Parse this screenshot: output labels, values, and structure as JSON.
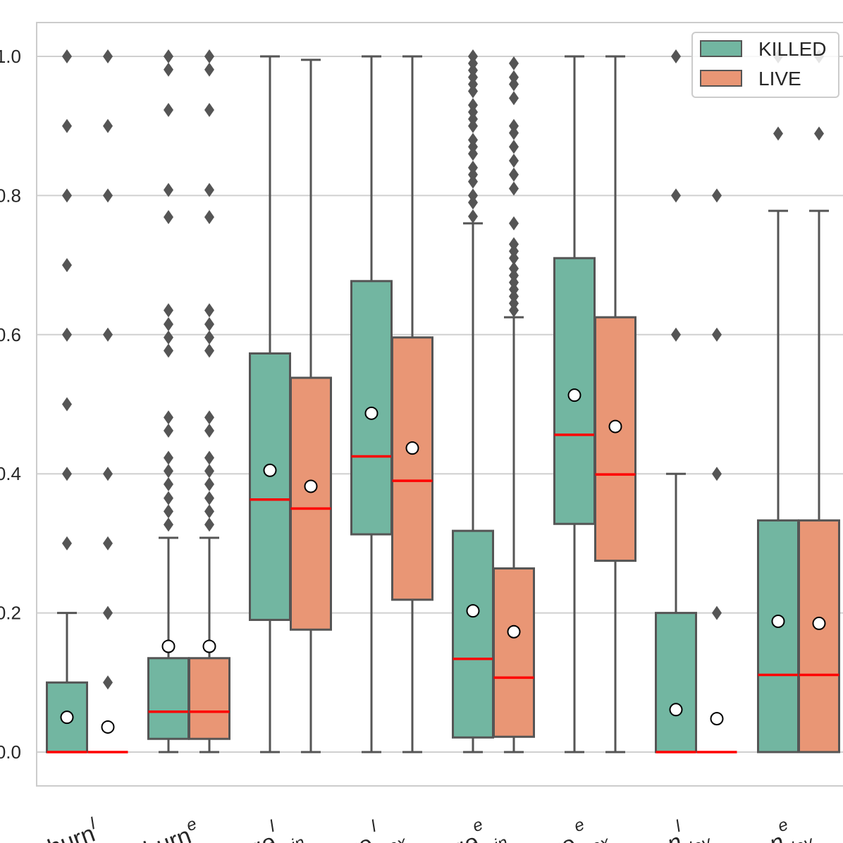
{
  "chart_data": {
    "type": "box",
    "ylim": [
      -0.05,
      1.05
    ],
    "y_ticks": [
      "0.0",
      "0.2",
      "0.4",
      "0.6",
      "0.8",
      "1.0"
    ],
    "grid": "horizontal",
    "legend_position": "top-right",
    "colors": {
      "KILLED": "#72b6a1",
      "LIVE": "#e99675",
      "median": "#ff0000",
      "edge": "#555555",
      "mean_marker": "#ffffff"
    },
    "categories": [
      {
        "base": "churn",
        "sup": "l",
        "sub": ""
      },
      {
        "base": "churn",
        "sup": "e",
        "sub": ""
      },
      {
        "base": "age",
        "sup": "l",
        "sub": "min"
      },
      {
        "base": "age",
        "sup": "l",
        "sub": "max"
      },
      {
        "base": "age",
        "sup": "e",
        "sub": "min"
      },
      {
        "base": "age",
        "sup": "e",
        "sub": "max"
      },
      {
        "base": "n",
        "sup": "l",
        "sub": "dev"
      },
      {
        "base": "n",
        "sup": "e",
        "sub": "dev"
      }
    ],
    "series": [
      {
        "name": "KILLED",
        "boxes": [
          {
            "lower_whisker": 0.0,
            "q1": 0.0,
            "median": 0.0,
            "q3": 0.1,
            "upper_whisker": 0.2,
            "mean": 0.05,
            "outliers": [
              0.3,
              0.4,
              0.5,
              0.6,
              0.7,
              0.8,
              0.9,
              1.0
            ]
          },
          {
            "lower_whisker": 0.0,
            "q1": 0.019,
            "median": 0.058,
            "q3": 0.135,
            "upper_whisker": 0.308,
            "mean": 0.152,
            "outliers": [
              0.327,
              0.346,
              0.365,
              0.385,
              0.404,
              0.423,
              0.462,
              0.481,
              0.577,
              0.596,
              0.615,
              0.635,
              0.769,
              0.808,
              0.923,
              0.981,
              1.0
            ]
          },
          {
            "lower_whisker": 0.0,
            "q1": 0.19,
            "median": 0.363,
            "q3": 0.573,
            "upper_whisker": 1.0,
            "mean": 0.405,
            "outliers": []
          },
          {
            "lower_whisker": 0.0,
            "q1": 0.313,
            "median": 0.425,
            "q3": 0.677,
            "upper_whisker": 1.0,
            "mean": 0.487,
            "outliers": []
          },
          {
            "lower_whisker": 0.0,
            "q1": 0.021,
            "median": 0.134,
            "q3": 0.318,
            "upper_whisker": 0.76,
            "mean": 0.203,
            "outliers": [
              0.77,
              0.79,
              0.8,
              0.82,
              0.83,
              0.84,
              0.86,
              0.87,
              0.88,
              0.9,
              0.91,
              0.92,
              0.93,
              0.95,
              0.96,
              0.97,
              0.98,
              0.99,
              1.0
            ]
          },
          {
            "lower_whisker": 0.0,
            "q1": 0.328,
            "median": 0.456,
            "q3": 0.71,
            "upper_whisker": 1.0,
            "mean": 0.513,
            "outliers": []
          },
          {
            "lower_whisker": 0.0,
            "q1": 0.0,
            "median": 0.0,
            "q3": 0.2,
            "upper_whisker": 0.4,
            "mean": 0.061,
            "outliers": [
              0.6,
              0.8,
              1.0
            ]
          },
          {
            "lower_whisker": 0.0,
            "q1": 0.0,
            "median": 0.111,
            "q3": 0.333,
            "upper_whisker": 0.778,
            "mean": 0.188,
            "outliers": [
              0.889,
              1.0
            ]
          }
        ]
      },
      {
        "name": "LIVE",
        "boxes": [
          {
            "lower_whisker": 0.0,
            "q1": 0.0,
            "median": 0.0,
            "q3": 0.0,
            "upper_whisker": 0.0,
            "mean": 0.036,
            "outliers": [
              0.1,
              0.2,
              0.3,
              0.4,
              0.6,
              0.8,
              0.9,
              1.0
            ]
          },
          {
            "lower_whisker": 0.0,
            "q1": 0.019,
            "median": 0.058,
            "q3": 0.135,
            "upper_whisker": 0.308,
            "mean": 0.152,
            "outliers": [
              0.327,
              0.346,
              0.365,
              0.385,
              0.404,
              0.423,
              0.462,
              0.481,
              0.577,
              0.596,
              0.615,
              0.635,
              0.769,
              0.808,
              0.923,
              0.981,
              1.0
            ]
          },
          {
            "lower_whisker": 0.0,
            "q1": 0.176,
            "median": 0.35,
            "q3": 0.538,
            "upper_whisker": 0.995,
            "mean": 0.382,
            "outliers": []
          },
          {
            "lower_whisker": 0.0,
            "q1": 0.219,
            "median": 0.39,
            "q3": 0.596,
            "upper_whisker": 1.0,
            "mean": 0.437,
            "outliers": []
          },
          {
            "lower_whisker": 0.0,
            "q1": 0.022,
            "median": 0.107,
            "q3": 0.264,
            "upper_whisker": 0.625,
            "mean": 0.173,
            "outliers": [
              0.635,
              0.645,
              0.655,
              0.665,
              0.675,
              0.685,
              0.695,
              0.71,
              0.72,
              0.73,
              0.76,
              0.81,
              0.83,
              0.85,
              0.87,
              0.89,
              0.9,
              0.94,
              0.96,
              0.97,
              0.99
            ]
          },
          {
            "lower_whisker": 0.0,
            "q1": 0.275,
            "median": 0.399,
            "q3": 0.625,
            "upper_whisker": 1.0,
            "mean": 0.468,
            "outliers": []
          },
          {
            "lower_whisker": 0.0,
            "q1": 0.0,
            "median": 0.0,
            "q3": 0.0,
            "upper_whisker": 0.0,
            "mean": 0.048,
            "outliers": [
              0.2,
              0.4,
              0.6,
              0.8
            ]
          },
          {
            "lower_whisker": 0.0,
            "q1": 0.0,
            "median": 0.111,
            "q3": 0.333,
            "upper_whisker": 0.778,
            "mean": 0.185,
            "outliers": [
              0.889,
              1.0
            ]
          }
        ]
      }
    ]
  }
}
